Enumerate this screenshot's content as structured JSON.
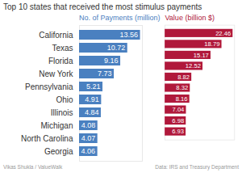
{
  "title": "Top 10 states that received the most stimulus payments",
  "annotations": [
    "Vikas Shukla / ValueWalk",
    "Data: IRS and Treasury Department"
  ],
  "chart_data": [
    {
      "type": "bar",
      "title": "No. of Payments (million)",
      "orientation": "horizontal",
      "categories": [
        "California",
        "Texas",
        "Florida",
        "New York",
        "Pennsylvania",
        "Ohio",
        "Illinois",
        "Michigan",
        "North Carolina",
        "Georgia"
      ],
      "values": [
        13.56,
        10.72,
        9.16,
        7.73,
        5.21,
        4.91,
        4.84,
        4.08,
        4.07,
        4.06
      ],
      "color": "#4a80c0",
      "xlim": [
        0,
        14
      ],
      "xticks": [],
      "data_labels": true,
      "tick_labels": "y"
    },
    {
      "type": "bar",
      "title": "Value (billion $)",
      "orientation": "horizontal",
      "categories": [
        "California",
        "Texas",
        "Florida",
        "New York",
        "Pennsylvania",
        "Ohio",
        "Illinois",
        "Michigan",
        "North Carolina",
        "Georgia"
      ],
      "values": [
        22.46,
        18.79,
        15.17,
        12.52,
        8.82,
        8.32,
        8.16,
        7.04,
        6.98,
        6.93
      ],
      "color": "#b0183b",
      "xlim": [
        0,
        23
      ],
      "xticks": [],
      "data_labels": true,
      "tick_labels": false
    }
  ]
}
